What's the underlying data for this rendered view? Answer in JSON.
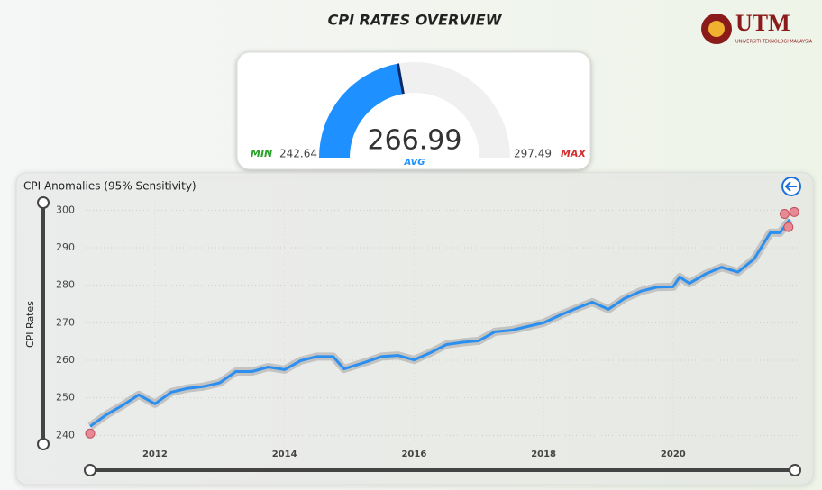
{
  "header": {
    "title": "CPI RATES OVERVIEW",
    "logo": "UTM",
    "logo_subtitle": "UNIVERSITI TEKNOLOGI MALAYSIA"
  },
  "chart_data": [
    {
      "type": "gauge",
      "value": 266.99,
      "value_caption": "AVG",
      "min": 242.64,
      "max": 297.49,
      "min_caption": "MIN",
      "max_caption": "MAX",
      "color": "#1e90ff",
      "track_color": "#f0f0f0"
    },
    {
      "type": "line",
      "title": "CPI Anomalies (95% Sensitivity)",
      "ylabel": "CPI Rates",
      "xlim": [
        2010.93,
        2021.95
      ],
      "xticks": [
        2012,
        2014,
        2016,
        2018,
        2020
      ],
      "ylim": [
        236,
        302
      ],
      "yticks": [
        240,
        250,
        260,
        270,
        280,
        290,
        300
      ],
      "grid": true,
      "color": "#2b8ff0",
      "band_color": "#b9b9b9",
      "x": [
        2011.0,
        2011.25,
        2011.5,
        2011.75,
        2012.0,
        2012.25,
        2012.5,
        2012.75,
        2013.0,
        2013.25,
        2013.5,
        2013.75,
        2014.0,
        2014.25,
        2014.5,
        2014.75,
        2014.92,
        2015.25,
        2015.5,
        2015.75,
        2016.0,
        2016.25,
        2016.5,
        2016.75,
        2017.0,
        2017.25,
        2017.5,
        2017.75,
        2018.0,
        2018.25,
        2018.5,
        2018.75,
        2019.0,
        2019.25,
        2019.5,
        2019.75,
        2020.0,
        2020.1,
        2020.25,
        2020.5,
        2020.75,
        2021.0,
        2021.25,
        2021.5,
        2021.65,
        2021.8
      ],
      "values": [
        242.4,
        245.5,
        248,
        250.8,
        248.4,
        251.5,
        252.5,
        253,
        254,
        257,
        257,
        258.2,
        257.5,
        259.9,
        261,
        261,
        257.7,
        259.5,
        261,
        261.3,
        260.1,
        262,
        264.2,
        264.8,
        265.2,
        267.6,
        268,
        269,
        270,
        272,
        273.8,
        275.5,
        273.6,
        276.5,
        278.4,
        279.5,
        279.6,
        282.2,
        280.5,
        283,
        284.8,
        283.5,
        287,
        294,
        294,
        297.5
      ],
      "anomalies": {
        "color": "#e88a93",
        "x": [
          2011.0,
          2021.72,
          2021.78,
          2021.87
        ],
        "values": [
          240.5,
          299,
          295.5,
          299.5
        ]
      }
    }
  ]
}
